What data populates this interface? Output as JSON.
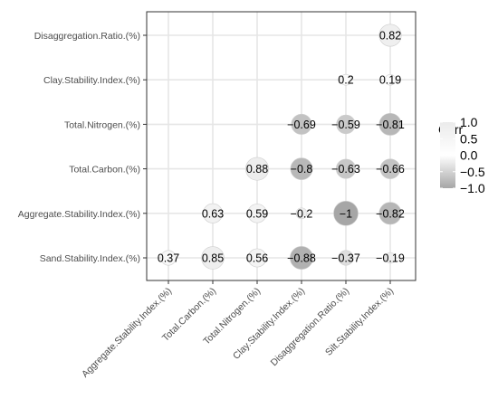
{
  "chart_data": {
    "type": "heatmap",
    "title": "",
    "xlabel": "",
    "ylabel": "",
    "x_categories": [
      "Aggregate.Stability.Index.(%)",
      "Total.Carbon.(%)",
      "Total.Nitrogen.(%)",
      "Clay.Stability.Index.(%)",
      "Disaggregation.Ratio.(%)",
      "Silt.Stability.Index.(%)"
    ],
    "y_categories": [
      "Sand.Stability.Index.(%)",
      "Aggregate.Stability.Index.(%)",
      "Total.Carbon.(%)",
      "Total.Nitrogen.(%)",
      "Clay.Stability.Index.(%)",
      "Disaggregation.Ratio.(%)"
    ],
    "cells": [
      {
        "x": "Aggregate.Stability.Index.(%)",
        "y": "Sand.Stability.Index.(%)",
        "value": 0.37,
        "label": "0.37"
      },
      {
        "x": "Total.Carbon.(%)",
        "y": "Sand.Stability.Index.(%)",
        "value": 0.85,
        "label": "0.85"
      },
      {
        "x": "Total.Nitrogen.(%)",
        "y": "Sand.Stability.Index.(%)",
        "value": 0.56,
        "label": "0.56"
      },
      {
        "x": "Clay.Stability.Index.(%)",
        "y": "Sand.Stability.Index.(%)",
        "value": -0.88,
        "label": "−0.88"
      },
      {
        "x": "Disaggregation.Ratio.(%)",
        "y": "Sand.Stability.Index.(%)",
        "value": -0.37,
        "label": "−0.37"
      },
      {
        "x": "Silt.Stability.Index.(%)",
        "y": "Sand.Stability.Index.(%)",
        "value": -0.19,
        "label": "−0.19"
      },
      {
        "x": "Total.Carbon.(%)",
        "y": "Aggregate.Stability.Index.(%)",
        "value": 0.63,
        "label": "0.63"
      },
      {
        "x": "Total.Nitrogen.(%)",
        "y": "Aggregate.Stability.Index.(%)",
        "value": 0.59,
        "label": "0.59"
      },
      {
        "x": "Clay.Stability.Index.(%)",
        "y": "Aggregate.Stability.Index.(%)",
        "value": -0.2,
        "label": "−0.2"
      },
      {
        "x": "Disaggregation.Ratio.(%)",
        "y": "Aggregate.Stability.Index.(%)",
        "value": -1,
        "label": "−1"
      },
      {
        "x": "Silt.Stability.Index.(%)",
        "y": "Aggregate.Stability.Index.(%)",
        "value": -0.82,
        "label": "−0.82"
      },
      {
        "x": "Total.Nitrogen.(%)",
        "y": "Total.Carbon.(%)",
        "value": 0.88,
        "label": "0.88"
      },
      {
        "x": "Clay.Stability.Index.(%)",
        "y": "Total.Carbon.(%)",
        "value": -0.8,
        "label": "−0.8"
      },
      {
        "x": "Disaggregation.Ratio.(%)",
        "y": "Total.Carbon.(%)",
        "value": -0.63,
        "label": "−0.63"
      },
      {
        "x": "Silt.Stability.Index.(%)",
        "y": "Total.Carbon.(%)",
        "value": -0.66,
        "label": "−0.66"
      },
      {
        "x": "Clay.Stability.Index.(%)",
        "y": "Total.Nitrogen.(%)",
        "value": -0.69,
        "label": "−0.69"
      },
      {
        "x": "Disaggregation.Ratio.(%)",
        "y": "Total.Nitrogen.(%)",
        "value": -0.59,
        "label": "−0.59"
      },
      {
        "x": "Silt.Stability.Index.(%)",
        "y": "Total.Nitrogen.(%)",
        "value": -0.81,
        "label": "−0.81"
      },
      {
        "x": "Disaggregation.Ratio.(%)",
        "y": "Clay.Stability.Index.(%)",
        "value": 0.2,
        "label": "0.2"
      },
      {
        "x": "Silt.Stability.Index.(%)",
        "y": "Clay.Stability.Index.(%)",
        "value": 0.19,
        "label": "0.19"
      },
      {
        "x": "Silt.Stability.Index.(%)",
        "y": "Disaggregation.Ratio.(%)",
        "value": 0.82,
        "label": "0.82"
      }
    ],
    "legend": {
      "title": "Corr",
      "position": "right",
      "range": [
        -1.0,
        1.0
      ],
      "tick_labels": [
        "1.0",
        "0.5",
        "0.0",
        "−0.5",
        "−1.0"
      ],
      "tick_values": [
        1.0,
        0.5,
        0.0,
        -0.5,
        -1.0
      ]
    },
    "colors": {
      "positive": "#ebebeb",
      "zero": "#ffffff",
      "negative": "#a6a6a6",
      "grid": "#e6e6e6",
      "panel_border": "#333333",
      "text": "#1a1a1a",
      "axis_text": "#4d4d4d"
    },
    "grid": true
  }
}
